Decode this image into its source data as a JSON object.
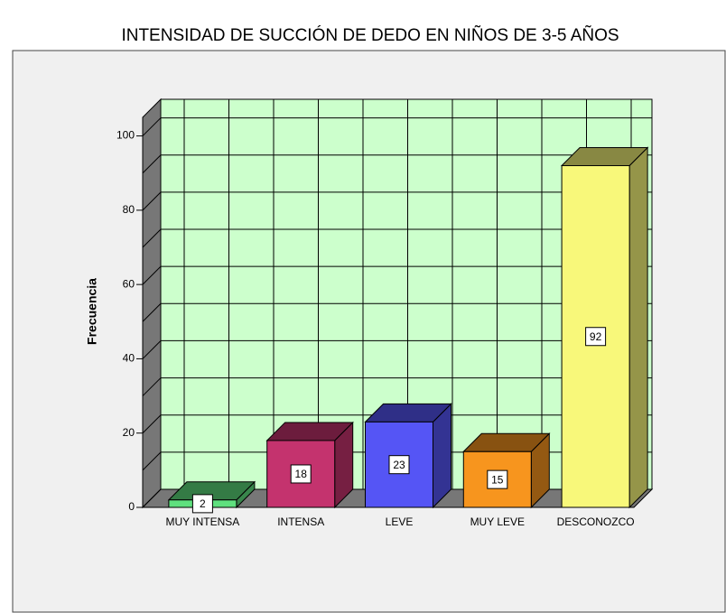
{
  "chart_data": {
    "type": "bar3d",
    "title": "INTENSIDAD DE SUCCIÓN DE DEDO EN NIÑOS DE 3-5 AÑOS",
    "y_label": "Frecuencia",
    "categories": [
      "MUY INTENSA",
      "INTENSA",
      "LEVE",
      "MUY LEVE",
      "DESCONOZCO"
    ],
    "values": [
      2,
      18,
      23,
      15,
      92
    ],
    "colors": [
      "#5fe07e",
      "#c4336e",
      "#5555f5",
      "#f7951e",
      "#f8f87a"
    ],
    "ylim": [
      0,
      105
    ],
    "yticks": [
      0,
      20,
      40,
      60,
      80,
      100
    ],
    "minor_yticks": [
      10,
      30,
      50,
      70,
      90
    ],
    "grid": true
  }
}
